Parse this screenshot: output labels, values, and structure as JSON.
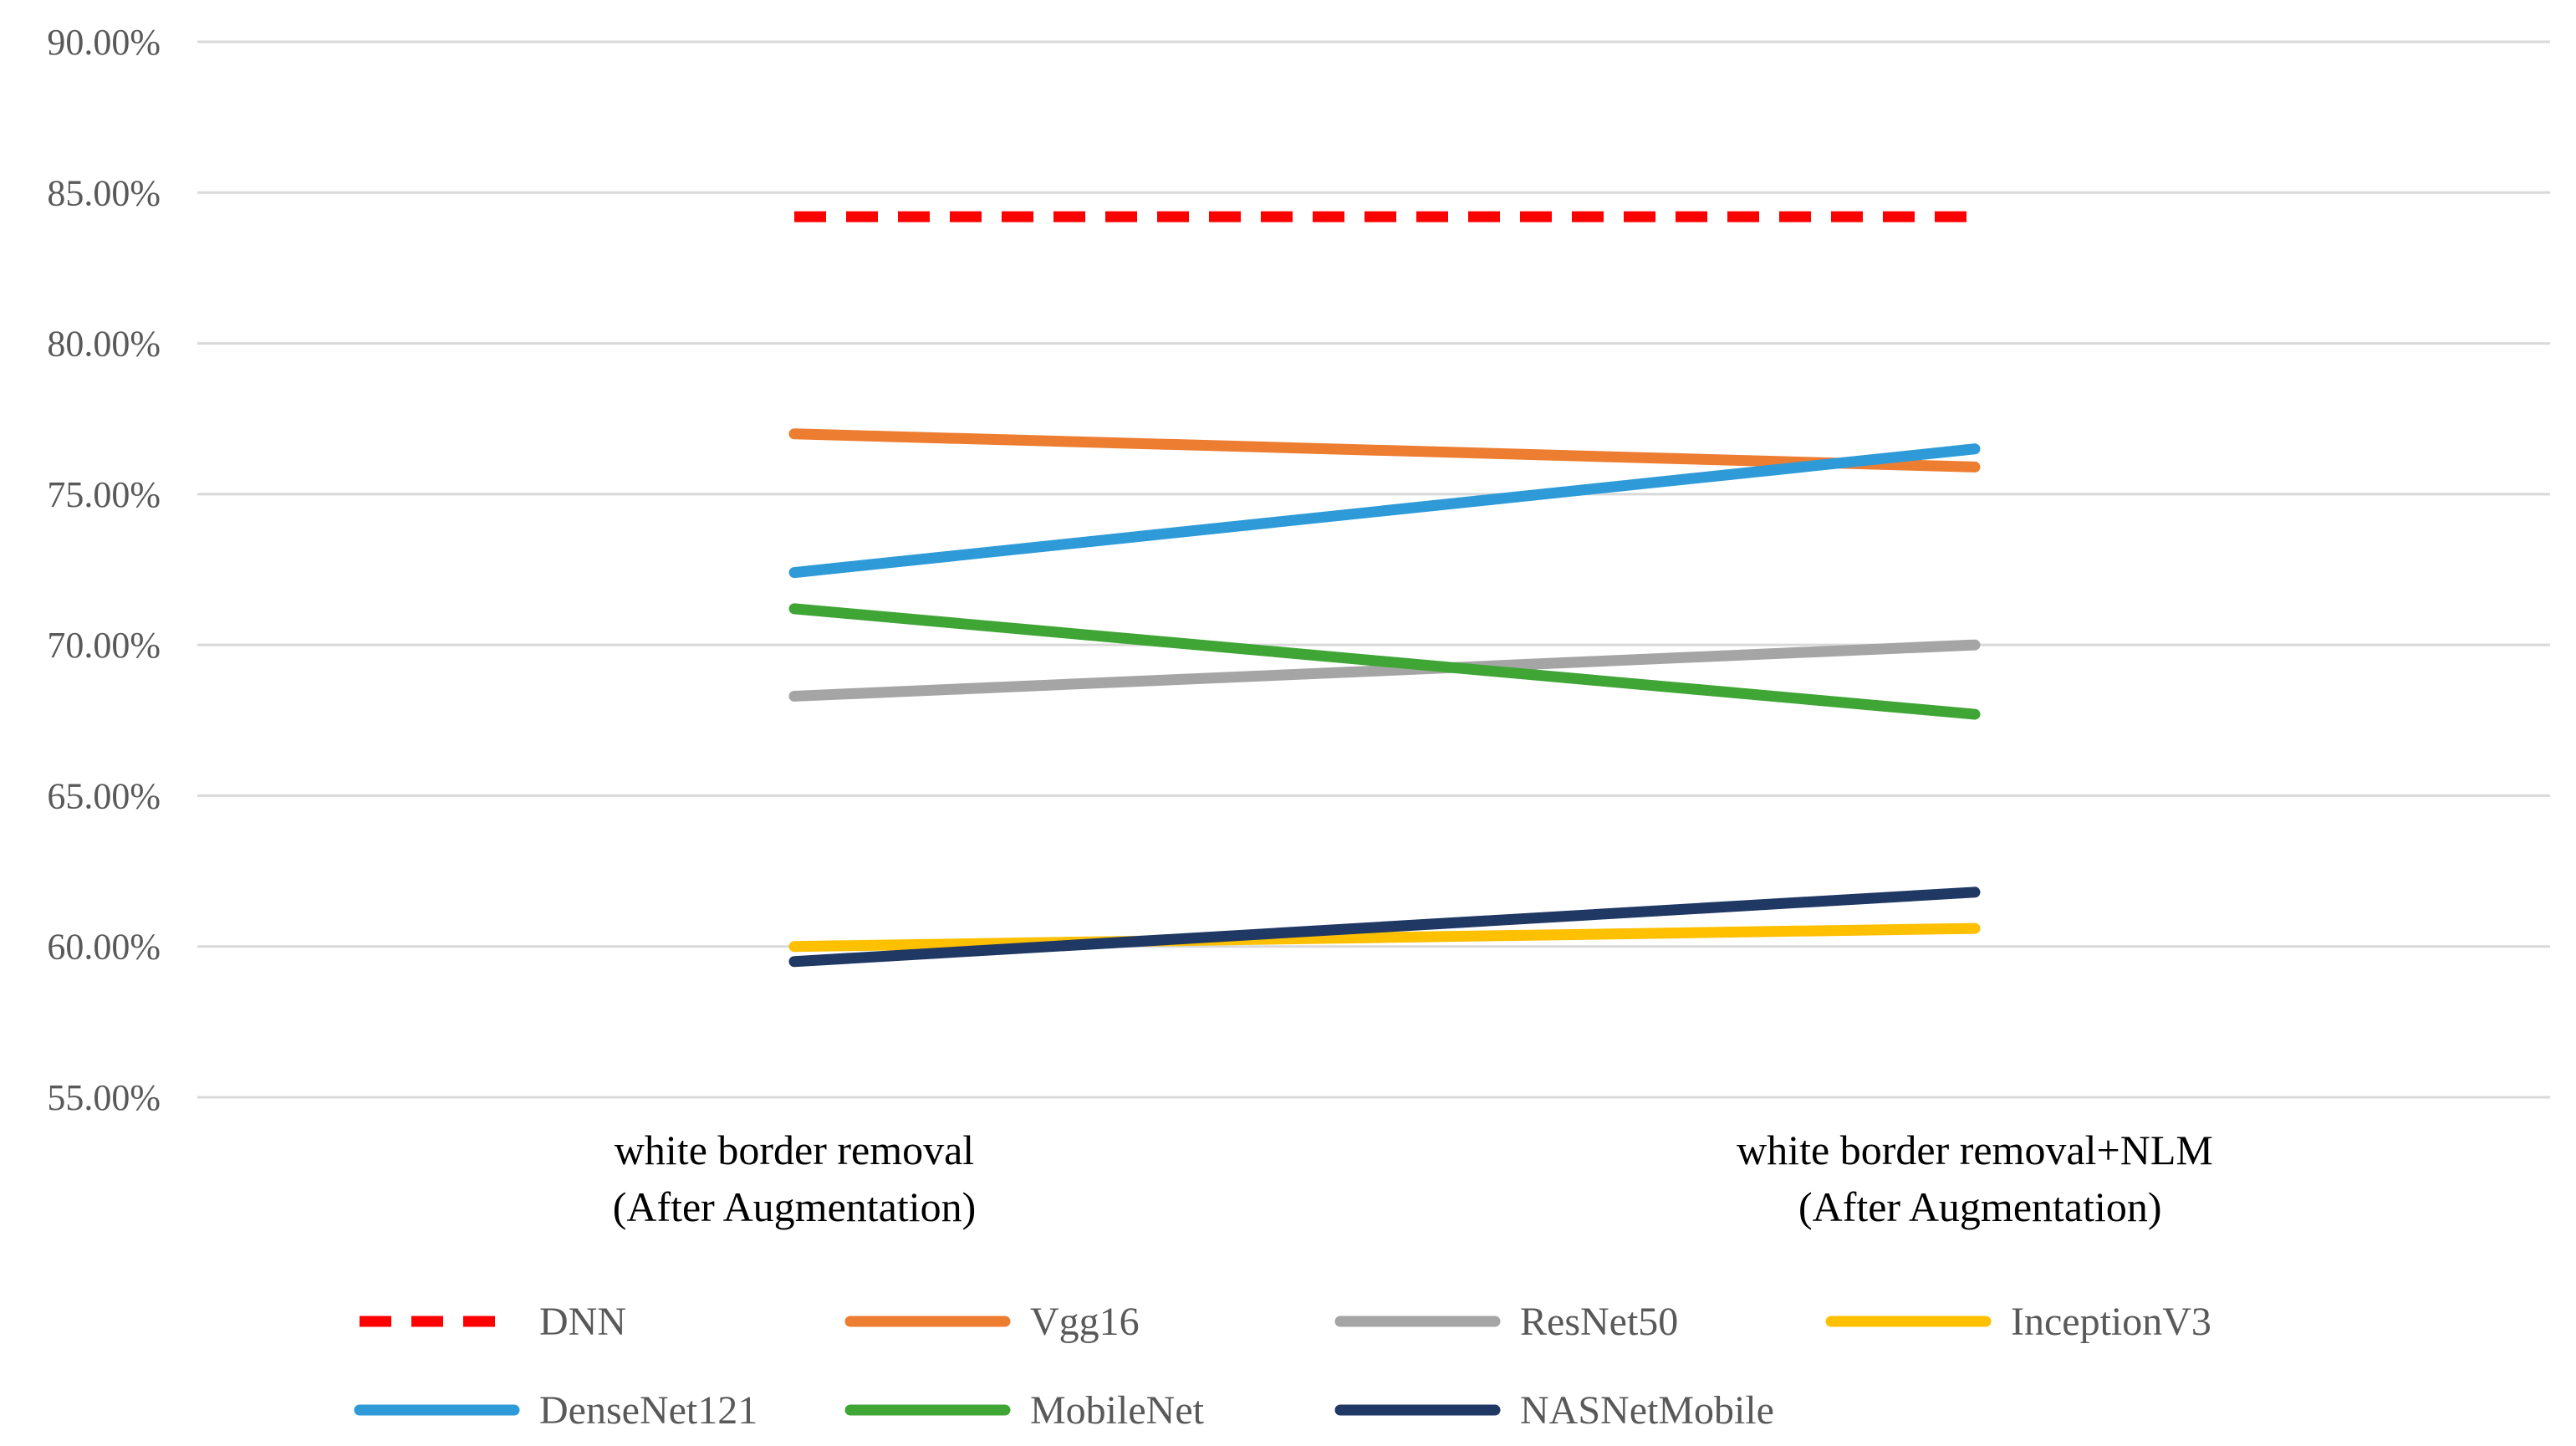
{
  "chart_data": {
    "type": "line",
    "title": "",
    "xlabel": "",
    "ylabel": "",
    "categories": [
      [
        "white border removal",
        "(After Augmentation)"
      ],
      [
        "white border removal+NLM",
        " (After Augmentation)"
      ]
    ],
    "ylim": [
      55,
      90
    ],
    "ytick_values": [
      55,
      60,
      65,
      70,
      75,
      80,
      85,
      90
    ],
    "ytick_labels": [
      "55.00%",
      "60.00%",
      "65.00%",
      "70.00%",
      "75.00%",
      "80.00%",
      "85.00%",
      "90.00%"
    ],
    "grid": true,
    "legend_position": "bottom",
    "series": [
      {
        "name": "DNN",
        "values": [
          84.2,
          84.2
        ],
        "color": "#FF0000",
        "dashed": true
      },
      {
        "name": "Vgg16",
        "values": [
          77.0,
          75.9
        ],
        "color": "#ED7D31",
        "dashed": false
      },
      {
        "name": "ResNet50",
        "values": [
          68.3,
          70.0
        ],
        "color": "#A5A5A5",
        "dashed": false
      },
      {
        "name": "InceptionV3",
        "values": [
          60.0,
          60.6
        ],
        "color": "#FFC000",
        "dashed": false
      },
      {
        "name": "DenseNet121",
        "values": [
          72.4,
          76.5
        ],
        "color": "#2E9BD8",
        "dashed": false
      },
      {
        "name": "MobileNet",
        "values": [
          71.2,
          67.7
        ],
        "color": "#3FA535",
        "dashed": false
      },
      {
        "name": "NASNetMobile",
        "values": [
          59.5,
          61.8
        ],
        "color": "#203864",
        "dashed": false
      }
    ]
  }
}
